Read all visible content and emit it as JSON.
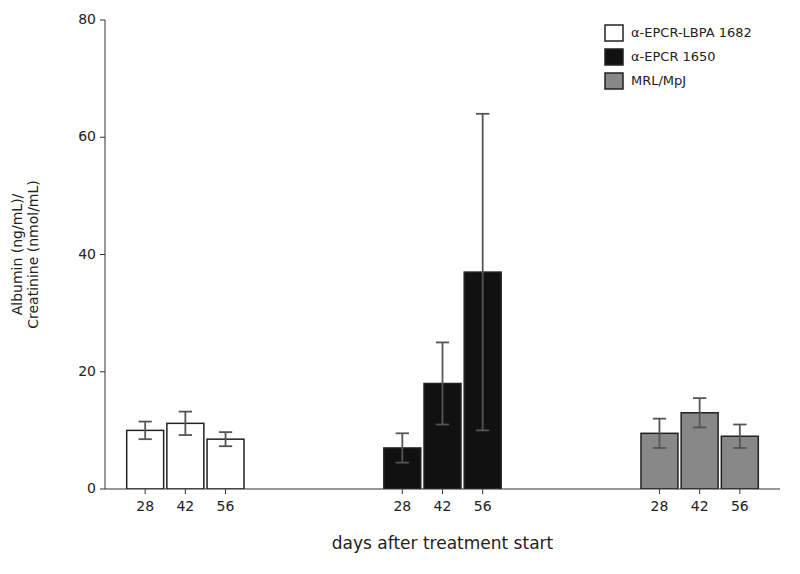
{
  "chart_data": {
    "type": "bar",
    "categories": [
      "28",
      "42",
      "56"
    ],
    "series": [
      {
        "name": "α-EPCR-LBPA 1682",
        "color": "#ffffff",
        "values": [
          10.0,
          11.2,
          8.5
        ],
        "errors": [
          1.5,
          2.0,
          1.2
        ]
      },
      {
        "name": "α-EPCR 1650",
        "color": "#111111",
        "values": [
          7.0,
          18.0,
          37.0
        ],
        "errors": [
          2.5,
          7.0,
          27.0
        ]
      },
      {
        "name": "MRL/MpJ",
        "color": "#888888",
        "values": [
          9.5,
          13.0,
          9.0
        ],
        "errors": [
          2.5,
          2.5,
          2.0
        ]
      }
    ],
    "ylabel": "Albumin (ng/mL)/\nCreatinine (nmol/mL)",
    "xlabel": "days after treatment start",
    "ylim": [
      0,
      80
    ],
    "yticks": [
      0,
      20,
      40,
      60,
      80
    ],
    "grid": false,
    "legend": "upper right"
  }
}
